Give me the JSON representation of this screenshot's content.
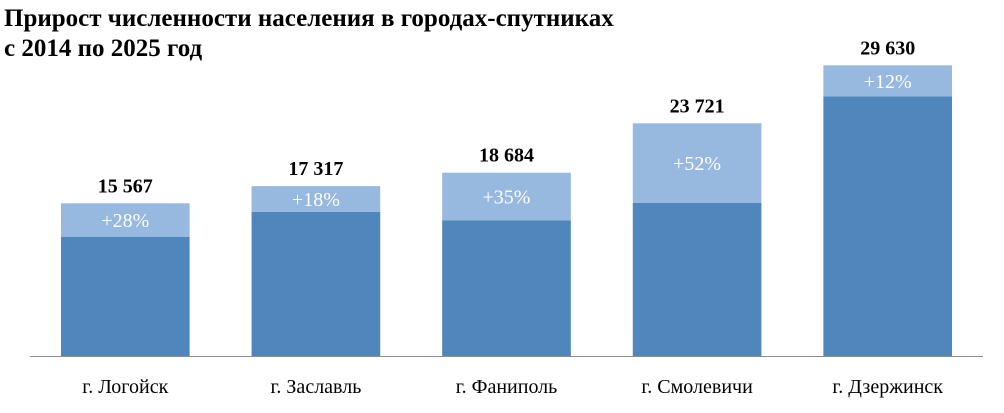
{
  "chart_data": {
    "type": "bar",
    "stacked": true,
    "title": "Прирост численности населения в городах-спутниках\nс 2014 по 2025 год",
    "xlabel": "",
    "ylabel": "",
    "ylim": [
      0,
      31500
    ],
    "grid": false,
    "legend": "none",
    "categories": [
      "г. Логойск",
      "г. Заславль",
      "г. Фаниполь",
      "г. Смолевичи",
      "г. Дзержинск"
    ],
    "totals": [
      15567,
      17317,
      18684,
      23721,
      29630
    ],
    "total_labels": [
      "15 567",
      "17 317",
      "18 684",
      "23 721",
      "29 630"
    ],
    "growth_labels": [
      "+28%",
      "+18%",
      "+35%",
      "+52%",
      "+12%"
    ],
    "series": [
      {
        "values": [
          12160,
          14680,
          13840,
          15600,
          26460
        ]
      },
      {
        "values": [
          3407,
          2637,
          4844,
          8121,
          3170
        ]
      }
    ],
    "colors": {
      "base": "#4F86BB",
      "growth": "#97B8DF",
      "axis": "#8C8C8C"
    }
  }
}
